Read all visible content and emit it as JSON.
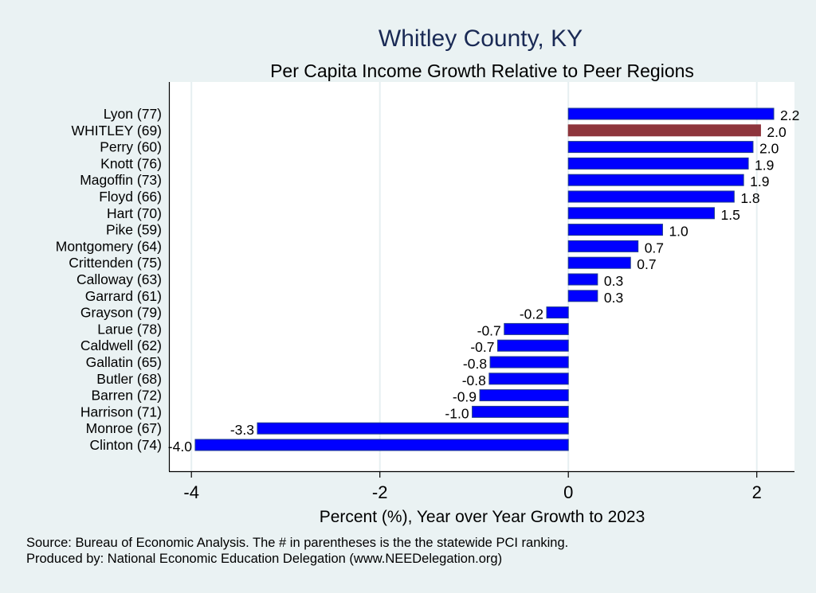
{
  "title": "Whitley County, KY",
  "subtitle": "Per Capita Income Growth Relative to Peer Regions",
  "footer": {
    "source": "Source: Bureau of Economic Analysis. The # in parentheses is the the statewide PCI ranking.",
    "produced_by": "Produced by: National Economic Education Delegation (www.NEEDelegation.org)"
  },
  "colors": {
    "background": "#eaf2f3",
    "bar": "#0000ff",
    "bar_edge": "#1f3d8c",
    "highlight": "#8e353c",
    "title": "#1a2a55"
  },
  "chart_data": {
    "type": "bar",
    "orientation": "horizontal",
    "title": "Whitley County, KY",
    "subtitle": "Per Capita Income Growth Relative to Peer Regions",
    "xlabel": "Percent (%), Year over Year Growth to 2023",
    "ylabel": "",
    "xlim": [
      -4.23,
      2.4
    ],
    "xticks": [
      -4,
      -2,
      0,
      2
    ],
    "xtick_labels": [
      "-4",
      "-2",
      "0",
      "2"
    ],
    "grid": true,
    "highlight": "WHITLEY (69)",
    "categories": [
      "Lyon (77)",
      "WHITLEY (69)",
      "Perry (60)",
      "Knott (76)",
      "Magoffin (73)",
      "Floyd (66)",
      "Hart (70)",
      "Pike (59)",
      "Montgomery (64)",
      "Crittenden (75)",
      "Calloway (63)",
      "Garrard (61)",
      "Grayson (79)",
      "Larue (78)",
      "Caldwell (62)",
      "Gallatin (65)",
      "Butler (68)",
      "Barren (72)",
      "Harrison (71)",
      "Monroe (67)",
      "Clinton (74)"
    ],
    "values": [
      2.18,
      2.04,
      1.96,
      1.91,
      1.86,
      1.76,
      1.55,
      1.0,
      0.74,
      0.66,
      0.31,
      0.31,
      -0.23,
      -0.68,
      -0.75,
      -0.83,
      -0.84,
      -0.94,
      -1.02,
      -3.3,
      -3.96
    ],
    "data_labels": [
      "2.2",
      "2.0",
      "2.0",
      "1.9",
      "1.9",
      "1.8",
      "1.5",
      "1.0",
      "0.7",
      "0.7",
      "0.3",
      "0.3",
      "-0.2",
      "-0.7",
      "-0.7",
      "-0.8",
      "-0.8",
      "-0.9",
      "-1.0",
      "-3.3",
      "-4.0"
    ]
  }
}
